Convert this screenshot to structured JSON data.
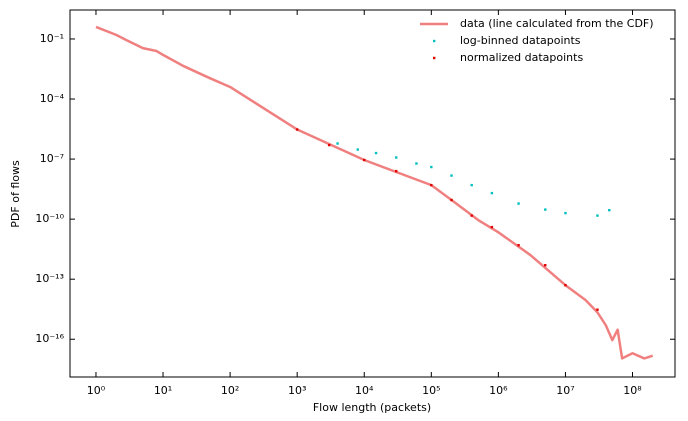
{
  "chart_data": {
    "type": "loglog",
    "xlabel": "Flow length (packets)",
    "ylabel": "PDF of flows",
    "xscale": "log",
    "yscale": "log",
    "xlim": [
      0.41,
      430000000.0
    ],
    "ylim": [
      1.3e-18,
      2.8
    ],
    "xticks": [
      {
        "value": 1,
        "label": "10⁰"
      },
      {
        "value": 10,
        "label": "10¹"
      },
      {
        "value": 100,
        "label": "10²"
      },
      {
        "value": 1000,
        "label": "10³"
      },
      {
        "value": 10000,
        "label": "10⁴"
      },
      {
        "value": 100000,
        "label": "10⁵"
      },
      {
        "value": 1000000,
        "label": "10⁶"
      },
      {
        "value": 10000000,
        "label": "10⁷"
      },
      {
        "value": 100000000,
        "label": "10⁸"
      }
    ],
    "yticks": [
      {
        "value": 0.1,
        "label": "10⁻¹"
      },
      {
        "value": 0.0001,
        "label": "10⁻⁴"
      },
      {
        "value": 1e-07,
        "label": "10⁻⁷"
      },
      {
        "value": 1e-10,
        "label": "10⁻¹⁰"
      },
      {
        "value": 1e-13,
        "label": "10⁻¹³"
      },
      {
        "value": 1e-16,
        "label": "10⁻¹⁶"
      }
    ],
    "legend": "upper right",
    "series": [
      {
        "name": "data (line calculated from the CDF)",
        "type": "line",
        "color": "#f08080",
        "x": [
          1,
          2,
          3,
          5,
          8,
          10,
          20,
          50,
          100,
          1000,
          10000,
          100000,
          200000,
          500000,
          1000000,
          3000000,
          10000000,
          20000000,
          30000000,
          40000000,
          50000000,
          60000000,
          70000000,
          100000000,
          150000000,
          200000000
        ],
        "values": [
          0.4,
          0.16,
          0.08,
          0.035,
          0.025,
          0.016,
          0.0045,
          0.0011,
          0.0004,
          3e-06,
          9e-08,
          5e-09,
          9e-10,
          9e-11,
          2.2e-11,
          1.6e-12,
          5e-14,
          9e-15,
          2.2e-15,
          5e-16,
          9e-17,
          3e-16,
          1.1e-17,
          2e-17,
          1.1e-17,
          1.5e-17
        ]
      },
      {
        "name": "log-binned datapoints",
        "type": "scatter",
        "color": "#00bfbf",
        "x": [
          4000,
          8000,
          15000,
          30000,
          60000,
          100000,
          200000,
          400000,
          800000,
          2000000,
          5000000,
          10000000,
          30000000,
          45000000
        ],
        "values": [
          6e-07,
          3e-07,
          2e-07,
          1.2e-07,
          6e-08,
          4e-08,
          1.5e-08,
          5e-09,
          2e-09,
          6e-10,
          3e-10,
          2e-10,
          1.5e-10,
          2.8e-10
        ]
      },
      {
        "name": "normalized datapoints",
        "type": "scatter",
        "color": "#e00000",
        "x": [
          1000,
          3000,
          10000,
          30000,
          100000,
          200000,
          400000,
          800000,
          2000000,
          5000000,
          10000000,
          30000000
        ],
        "values": [
          3e-06,
          5e-07,
          9e-08,
          2.5e-08,
          5e-09,
          9e-10,
          1.5e-10,
          4e-11,
          5e-12,
          5e-13,
          5e-14,
          3e-15
        ]
      }
    ]
  }
}
